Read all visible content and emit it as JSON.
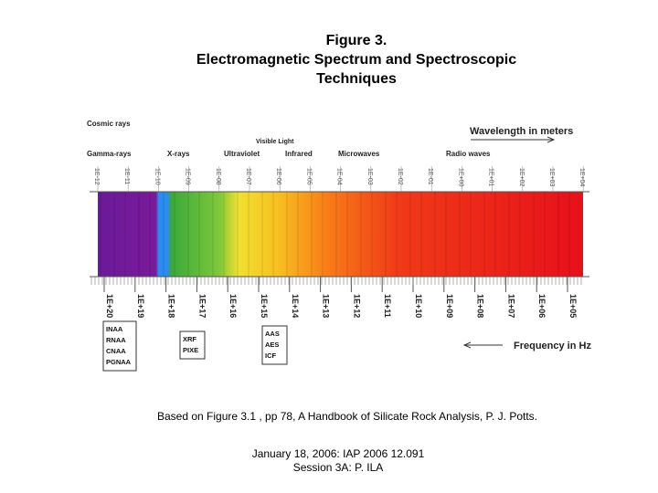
{
  "header": {
    "title_lines": [
      "Figure 3.",
      "Electromagnetic Spectrum and Spectroscopic",
      "Techniques"
    ]
  },
  "figure": {
    "regions": [
      "Cosmic rays",
      "Gamma-rays",
      "X-rays",
      "Ultraviolet",
      "Visible Light",
      "Infrared",
      "Microwaves",
      "Radio waves"
    ],
    "wavelength_label": "Wavelength in meters",
    "wavelength_ticks": [
      "1E-12",
      "1E-11",
      "1E-10",
      "1E-09",
      "1E-08",
      "1E-07",
      "1E-06",
      "1E-05",
      "1E-04",
      "1E-03",
      "1E-02",
      "1E-01",
      "1E+00",
      "1E+01",
      "1E+02",
      "1E+03",
      "1E+04"
    ],
    "frequency_label": "Frequency in Hz",
    "frequency_ticks": [
      "1E+20",
      "1E+19",
      "1E+18",
      "1E+17",
      "1E+16",
      "1E+15",
      "1E+14",
      "1E+13",
      "1E+12",
      "1E+11",
      "1E+10",
      "1E+09",
      "1E+08",
      "1E+07",
      "1E+06",
      "1E+05"
    ],
    "techniques": [
      [
        "INAA",
        "RNAA",
        "CNAA",
        "PGNAA"
      ],
      [
        "XRF",
        "PIXE"
      ],
      [
        "AAS",
        "AES",
        "ICF"
      ]
    ]
  },
  "caption": "Based on Figure 3.1 , pp 78, A Handbook of Silicate Rock Analysis, P. J. Potts.",
  "footer": [
    "January 18, 2006: IAP 2006 12.091",
    "Session 3A: P. ILA"
  ]
}
